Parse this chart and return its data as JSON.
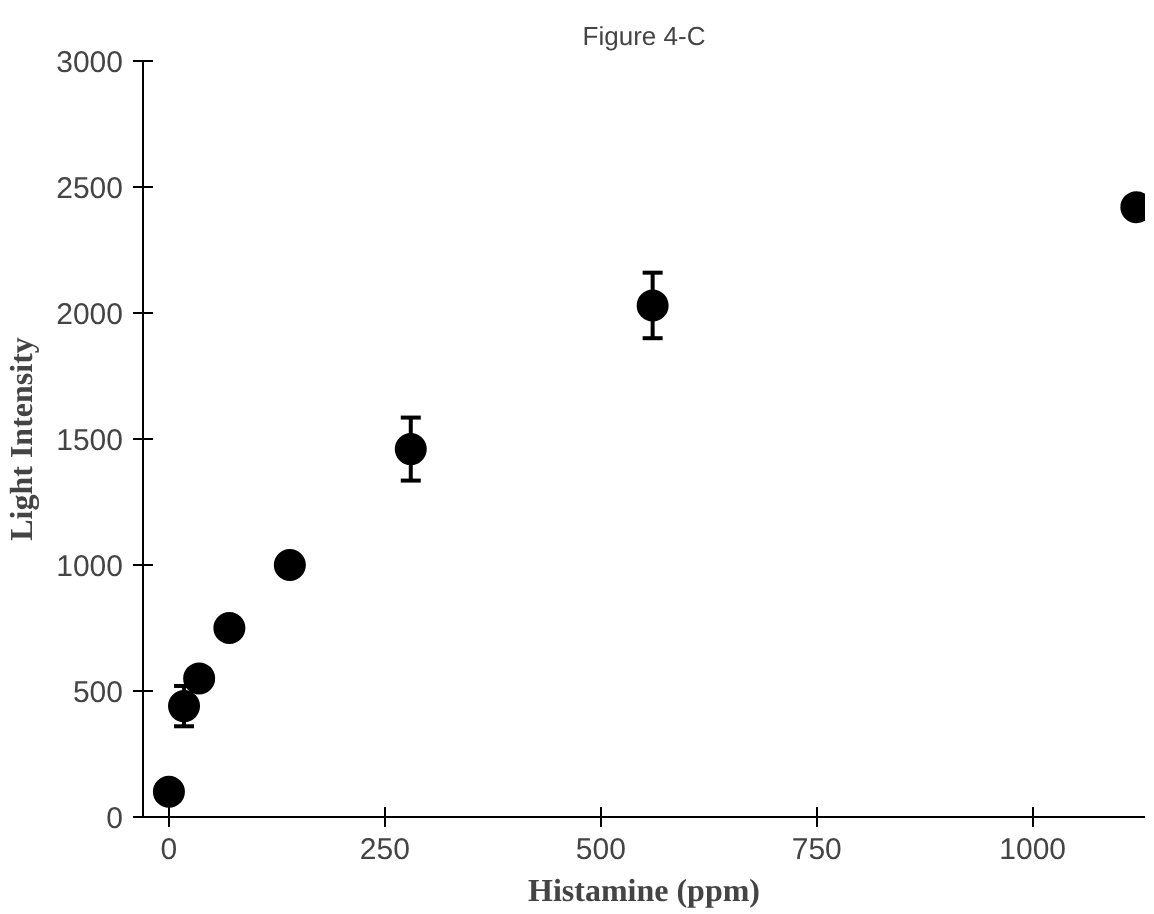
{
  "chart_data": {
    "type": "scatter",
    "title": "Figure 4-C",
    "xlabel": "Histamine (ppm)",
    "ylabel": "Light Intensity",
    "x": [
      0,
      17.5,
      35,
      70,
      140,
      280,
      560,
      1120
    ],
    "values": [
      100,
      440,
      550,
      750,
      1000,
      1460,
      2030,
      2420
    ],
    "errors": [
      null,
      80,
      null,
      null,
      null,
      125,
      130,
      null
    ],
    "color": "#000000",
    "marker": "circle",
    "grid": false,
    "xlim": [
      -30,
      1130
    ],
    "xticks": [
      0,
      250,
      500,
      750,
      1000
    ],
    "ylim": [
      0,
      3000
    ],
    "yticks": [
      0,
      500,
      1000,
      1500,
      2000,
      2500,
      3000
    ]
  }
}
